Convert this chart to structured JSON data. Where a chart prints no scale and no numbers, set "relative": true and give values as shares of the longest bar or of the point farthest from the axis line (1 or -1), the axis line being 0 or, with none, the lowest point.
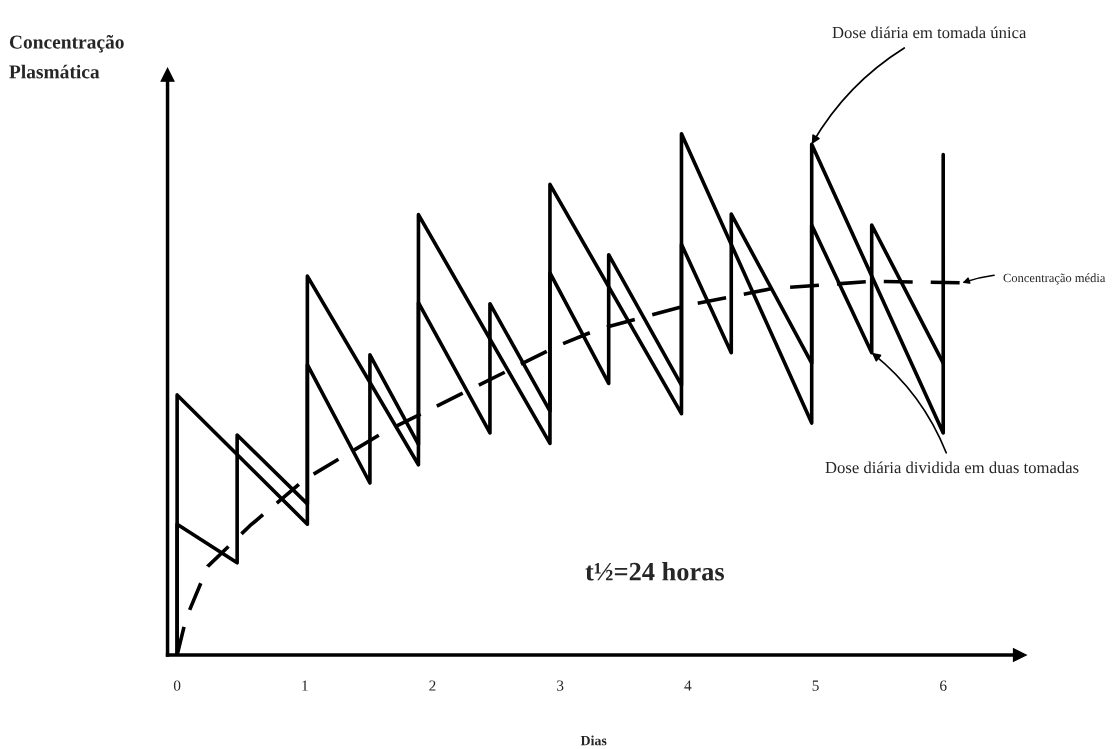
{
  "chart_data": {
    "type": "line",
    "relative": true,
    "xlabel": "Dias",
    "ylabel": "Concentração\nPlasmática",
    "xlim": [
      -0.075,
      6.6
    ],
    "xticks": [
      0,
      1,
      2,
      3,
      4,
      5,
      6
    ],
    "grid": false,
    "legend": false,
    "marker": "none",
    "series": [
      {
        "color": "#000000",
        "line_style": "solid",
        "x": [
          0,
          0,
          1.02,
          1.02,
          1.89,
          1.89,
          2.92,
          2.92,
          3.95,
          3.95,
          4.97,
          4.97,
          6.0,
          6.0
        ],
        "values": [
          0,
          0.499,
          0.251,
          0.727,
          0.365,
          0.845,
          0.406,
          0.903,
          0.463,
          1.0,
          0.445,
          0.98,
          0.426,
          0.96
        ]
      },
      {
        "color": "#000000",
        "line_style": "solid",
        "x": [
          0,
          0,
          0.47,
          0.47,
          1.02,
          1.02,
          1.51,
          1.51,
          1.89,
          1.89,
          2.45,
          2.45,
          2.92,
          2.92,
          3.38,
          3.38,
          3.95,
          3.95,
          4.34,
          4.34,
          4.97,
          4.97,
          5.44,
          5.44,
          6.0
        ],
        "values": [
          0,
          0.251,
          0.177,
          0.422,
          0.29,
          0.557,
          0.33,
          0.576,
          0.404,
          0.676,
          0.426,
          0.674,
          0.468,
          0.733,
          0.521,
          0.768,
          0.518,
          0.788,
          0.58,
          0.846,
          0.56,
          0.825,
          0.58,
          0.825,
          0.56
        ]
      },
      {
        "color": "#000000",
        "line_style": "dashed",
        "x": [
          0,
          0.07,
          0.24,
          0.57,
          1.0,
          1.61,
          2.25,
          2.98,
          3.3,
          4.0,
          4.66,
          5.45,
          6.15
        ],
        "values": [
          0,
          0.07,
          0.17,
          0.248,
          0.337,
          0.426,
          0.504,
          0.593,
          0.625,
          0.671,
          0.703,
          0.717,
          0.714
        ]
      }
    ],
    "annotations": [
      {
        "text": "Dose diária em tomada única",
        "x": 4.97,
        "y": 0.98
      },
      {
        "text": "Concentração média",
        "x": 6.15,
        "y": 0.714
      },
      {
        "text": "Dose diária dividida em duas tomadas",
        "x": 5.44,
        "y": 0.58
      },
      "t½=24 horas"
    ]
  }
}
